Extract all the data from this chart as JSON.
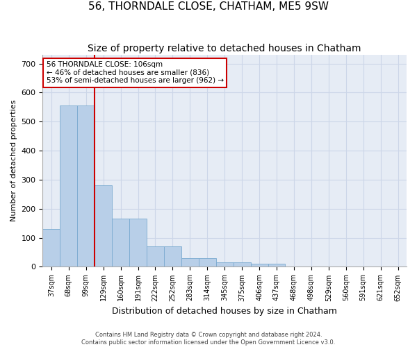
{
  "title": "56, THORNDALE CLOSE, CHATHAM, ME5 9SW",
  "subtitle": "Size of property relative to detached houses in Chatham",
  "xlabel": "Distribution of detached houses by size in Chatham",
  "ylabel": "Number of detached properties",
  "categories": [
    "37sqm",
    "68sqm",
    "99sqm",
    "129sqm",
    "160sqm",
    "191sqm",
    "222sqm",
    "252sqm",
    "283sqm",
    "314sqm",
    "345sqm",
    "375sqm",
    "406sqm",
    "437sqm",
    "468sqm",
    "498sqm",
    "529sqm",
    "560sqm",
    "591sqm",
    "621sqm",
    "652sqm"
  ],
  "values": [
    130,
    555,
    555,
    280,
    165,
    165,
    70,
    70,
    30,
    30,
    15,
    15,
    10,
    10,
    0,
    0,
    0,
    0,
    0,
    0,
    0
  ],
  "bar_color": "#b8cfe8",
  "bar_edge_color": "#7aaad0",
  "red_line_x": 2.5,
  "annotation_text": "56 THORNDALE CLOSE: 106sqm\n← 46% of detached houses are smaller (836)\n53% of semi-detached houses are larger (962) →",
  "annotation_box_color": "white",
  "annotation_box_edge_color": "#cc0000",
  "red_line_color": "#cc0000",
  "ylim": [
    0,
    730
  ],
  "yticks": [
    0,
    100,
    200,
    300,
    400,
    500,
    600,
    700
  ],
  "footer_text": "Contains HM Land Registry data © Crown copyright and database right 2024.\nContains public sector information licensed under the Open Government Licence v3.0.",
  "title_fontsize": 11,
  "subtitle_fontsize": 10,
  "xlabel_fontsize": 9,
  "ylabel_fontsize": 8,
  "grid_color": "#ccd6e8",
  "bg_color": "#e6ecf5"
}
